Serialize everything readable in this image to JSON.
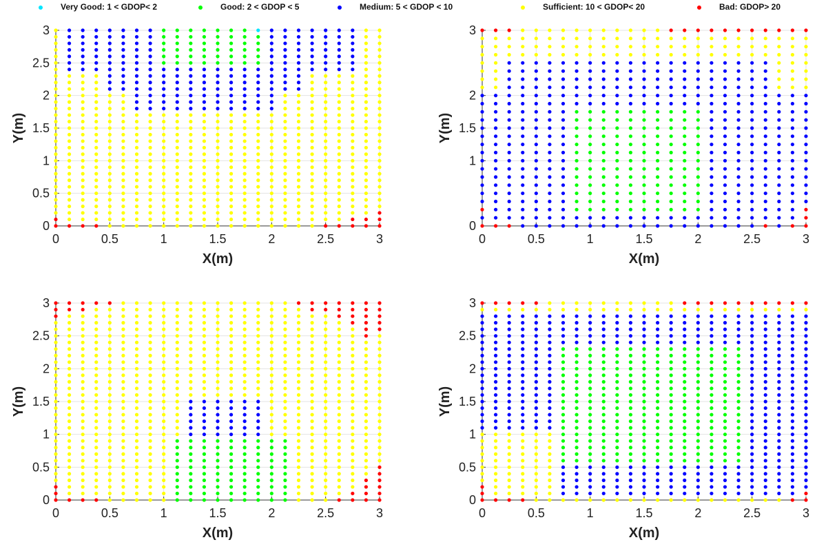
{
  "legend": {
    "very_good": "Very Good: 1 < GDOP< 2",
    "good": "Good: 2 < GDOP < 5",
    "medium": "Medium: 5 < GDOP < 10",
    "sufficient": "Sufficient: 10 < GDOP< 20",
    "bad": "Bad: GDOP> 20"
  },
  "colors": {
    "very_good": "#00e5ff",
    "good": "#00ff00",
    "medium": "#0000ff",
    "sufficient": "#ffff00",
    "bad": "#ff0000"
  },
  "chart_data": [
    {
      "type": "scatter",
      "panel": "top-left",
      "xlabel": "X(m)",
      "ylabel": "Y(m)",
      "xlim": [
        0,
        3
      ],
      "ylim": [
        0,
        3
      ],
      "xticks": [
        "0",
        "0.5",
        "1",
        "1.5",
        "2",
        "2.5",
        "3"
      ],
      "yticks": [
        "0",
        "0.5",
        "1",
        "1.5",
        "2",
        "2.5",
        "3"
      ],
      "grid": true,
      "point_spacing_x": 0.125,
      "point_spacing_y": 0.1,
      "regions": [
        {
          "class": "sufficient",
          "description": "default fill",
          "x": [
            0,
            3
          ],
          "y": [
            0,
            3
          ]
        },
        {
          "class": "medium",
          "x": [
            0.125,
            2.75
          ],
          "y": [
            2.4,
            3.0
          ]
        },
        {
          "class": "medium",
          "x": [
            0.5,
            2.25
          ],
          "y": [
            2.1,
            2.4
          ]
        },
        {
          "class": "medium",
          "x": [
            0.75,
            2.0
          ],
          "y": [
            1.8,
            2.1
          ]
        },
        {
          "class": "good",
          "x": [
            1.0,
            1.875
          ],
          "y": [
            2.5,
            3.0
          ]
        },
        {
          "class": "very_good",
          "points": [
            [
              1.875,
              3.0
            ]
          ]
        },
        {
          "class": "bad",
          "points": [
            [
              0,
              0
            ],
            [
              0,
              0.1
            ],
            [
              0.125,
              0
            ],
            [
              0.25,
              0
            ],
            [
              0.375,
              0
            ],
            [
              2.5,
              0
            ],
            [
              2.625,
              0
            ],
            [
              2.75,
              0
            ],
            [
              2.75,
              0.1
            ],
            [
              2.875,
              0
            ],
            [
              2.875,
              0.1
            ],
            [
              3,
              0
            ],
            [
              3,
              0.1
            ],
            [
              3,
              0.2
            ]
          ]
        }
      ]
    },
    {
      "type": "scatter",
      "panel": "top-right",
      "xlabel": "X(m)",
      "ylabel": "Y(m)",
      "xlim": [
        0,
        3
      ],
      "ylim": [
        0,
        3
      ],
      "xticks": [
        "0",
        "0.5",
        "1",
        "1.5",
        "2",
        "2.5",
        "3"
      ],
      "yticks": [
        "0",
        "1",
        "1.5",
        "2",
        "3"
      ],
      "grid": true,
      "point_spacing_x": 0.125,
      "point_spacing_y": 0.125,
      "regions": [
        {
          "class": "sufficient",
          "description": "default fill",
          "x": [
            0,
            3
          ],
          "y": [
            0,
            3
          ]
        },
        {
          "class": "medium",
          "x": [
            0.0,
            3.0
          ],
          "y": [
            0.0,
            2.0
          ]
        },
        {
          "class": "medium",
          "x": [
            0.25,
            2.625
          ],
          "y": [
            2.0,
            2.6
          ]
        },
        {
          "class": "good",
          "x": [
            0.875,
            2.0
          ],
          "y": [
            0.25,
            1.8
          ]
        },
        {
          "class": "bad",
          "description": "top edge right half",
          "x": [
            1.75,
            3.0
          ],
          "y": [
            3.0,
            3.0
          ]
        },
        {
          "class": "bad",
          "points": [
            [
              0,
              3
            ],
            [
              0.125,
              3
            ],
            [
              0.25,
              3
            ],
            [
              0,
              0
            ],
            [
              0.125,
              0
            ],
            [
              0.25,
              0
            ],
            [
              0,
              0.25
            ],
            [
              0,
              0.4
            ],
            [
              2.625,
              0
            ],
            [
              2.875,
              0
            ],
            [
              3,
              0
            ],
            [
              3,
              0.125
            ],
            [
              3,
              0.25
            ]
          ]
        }
      ]
    },
    {
      "type": "scatter",
      "panel": "bottom-left",
      "xlabel": "X(m)",
      "ylabel": "Y(m)",
      "xlim": [
        0,
        3
      ],
      "ylim": [
        0,
        3
      ],
      "xticks": [
        "0",
        "0.5",
        "1",
        "1.5",
        "2",
        "2.5",
        "3"
      ],
      "yticks": [
        "0",
        "0.5",
        "1",
        "1.5",
        "2",
        "2.5",
        "3"
      ],
      "grid": true,
      "point_spacing_x": 0.125,
      "point_spacing_y": 0.1,
      "regions": [
        {
          "class": "sufficient",
          "description": "default fill",
          "x": [
            0,
            3
          ],
          "y": [
            0,
            3
          ]
        },
        {
          "class": "good",
          "x": [
            1.125,
            2.125
          ],
          "y": [
            0.0,
            0.9
          ]
        },
        {
          "class": "medium",
          "x": [
            1.25,
            1.875
          ],
          "y": [
            1.0,
            1.5
          ]
        },
        {
          "class": "bad",
          "points": [
            [
              0,
              3
            ],
            [
              0,
              2.9
            ],
            [
              0,
              2.8
            ],
            [
              0.125,
              3
            ],
            [
              0.125,
              2.9
            ],
            [
              0.25,
              3
            ],
            [
              0.25,
              2.9
            ],
            [
              0.375,
              3
            ],
            [
              0.5,
              3
            ],
            [
              2.25,
              3
            ],
            [
              2.375,
              3
            ],
            [
              2.375,
              2.9
            ],
            [
              2.5,
              3
            ],
            [
              2.5,
              2.9
            ],
            [
              2.625,
              3
            ],
            [
              2.625,
              2.9
            ],
            [
              2.625,
              2.8
            ],
            [
              2.75,
              3
            ],
            [
              2.75,
              2.9
            ],
            [
              2.75,
              2.8
            ],
            [
              2.75,
              2.7
            ],
            [
              2.875,
              3
            ],
            [
              2.875,
              2.9
            ],
            [
              2.875,
              2.8
            ],
            [
              2.875,
              2.7
            ],
            [
              2.875,
              2.6
            ],
            [
              2.875,
              2.5
            ],
            [
              3,
              3
            ],
            [
              3,
              2.9
            ],
            [
              3,
              2.8
            ],
            [
              3,
              2.7
            ],
            [
              3,
              2.6
            ],
            [
              0,
              0
            ],
            [
              0,
              0.1
            ],
            [
              0,
              0.2
            ],
            [
              0.125,
              0
            ],
            [
              0.25,
              0
            ],
            [
              0.375,
              0
            ],
            [
              2.625,
              0
            ],
            [
              2.75,
              0
            ],
            [
              2.75,
              0.1
            ],
            [
              2.875,
              0
            ],
            [
              2.875,
              0.1
            ],
            [
              2.875,
              0.2
            ],
            [
              2.875,
              0.3
            ],
            [
              3,
              0
            ],
            [
              3,
              0.1
            ],
            [
              3,
              0.2
            ],
            [
              3,
              0.3
            ],
            [
              3,
              0.4
            ],
            [
              3,
              0.5
            ]
          ]
        }
      ]
    },
    {
      "type": "scatter",
      "panel": "bottom-right",
      "xlabel": "X(m)",
      "ylabel": "Y(m)",
      "xlim": [
        0,
        3
      ],
      "ylim": [
        0,
        3
      ],
      "xticks": [
        "0",
        "0.5",
        "1",
        "1.5",
        "2",
        "2.5",
        "3"
      ],
      "yticks": [
        "0",
        "0.5",
        "1",
        "1.5",
        "2",
        "2.5",
        "3"
      ],
      "grid": true,
      "point_spacing_x": 0.125,
      "point_spacing_y": 0.1,
      "regions": [
        {
          "class": "sufficient",
          "description": "default fill",
          "x": [
            0,
            3
          ],
          "y": [
            0,
            3
          ]
        },
        {
          "class": "medium",
          "x": [
            0.0,
            3.0
          ],
          "y": [
            0.1,
            2.8
          ]
        },
        {
          "class": "good",
          "x": [
            0.75,
            2.375
          ],
          "y": [
            0.6,
            2.3
          ]
        },
        {
          "class": "sufficient",
          "x": [
            0.0,
            0.625
          ],
          "y": [
            0.0,
            1.0
          ]
        },
        {
          "class": "bad",
          "description": "top edge",
          "x": [
            1.875,
            3.0
          ],
          "y": [
            3.0,
            3.0
          ]
        },
        {
          "class": "bad",
          "points": [
            [
              0,
              3
            ],
            [
              0.125,
              3
            ],
            [
              0.25,
              3
            ],
            [
              0.375,
              3
            ],
            [
              0.5,
              3
            ],
            [
              0,
              0
            ],
            [
              0.125,
              0
            ],
            [
              0.25,
              0
            ],
            [
              0.375,
              0
            ],
            [
              0,
              0.1
            ],
            [
              0,
              0.2
            ],
            [
              2.875,
              0
            ],
            [
              3,
              0
            ],
            [
              3,
              0.1
            ]
          ]
        }
      ]
    }
  ]
}
